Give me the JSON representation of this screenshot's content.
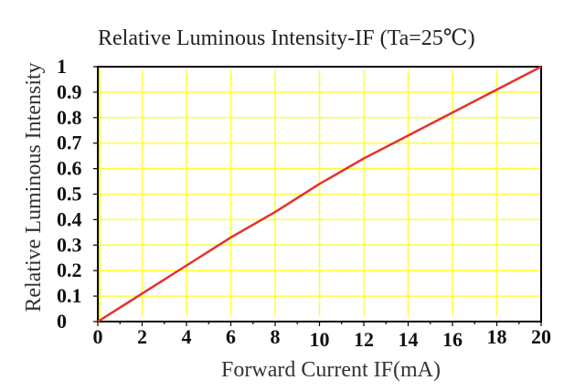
{
  "chart_data": {
    "type": "line",
    "title": "Relative Luminous Intensity-IF (Ta=25℃)",
    "xlabel": "Forward Current IF(mA)",
    "ylabel": "Relative Luminous Intensity",
    "xlim": [
      0,
      20
    ],
    "ylim": [
      0,
      1
    ],
    "grid": true,
    "legend": null,
    "x_ticks": [
      "0",
      "2",
      "4",
      "6",
      "8",
      "10",
      "12",
      "14",
      "16",
      "18",
      "20"
    ],
    "y_ticks": [
      "0",
      "0.1",
      "0.2",
      "0.3",
      "0.4",
      "0.5",
      "0.6",
      "0.7",
      "0.8",
      "0.9",
      "1"
    ],
    "x": [
      0,
      2,
      4,
      6,
      8,
      10,
      12,
      14,
      16,
      18,
      20
    ],
    "series": [
      {
        "name": "Relative Luminous Intensity",
        "values": [
          0,
          0.11,
          0.22,
          0.33,
          0.43,
          0.54,
          0.64,
          0.73,
          0.82,
          0.91,
          1.0
        ],
        "color": "#e8302a"
      }
    ]
  },
  "colors": {
    "grid": "#ffff33",
    "frame": "#000000",
    "curve": "#e8302a",
    "background": "#ffffff"
  }
}
